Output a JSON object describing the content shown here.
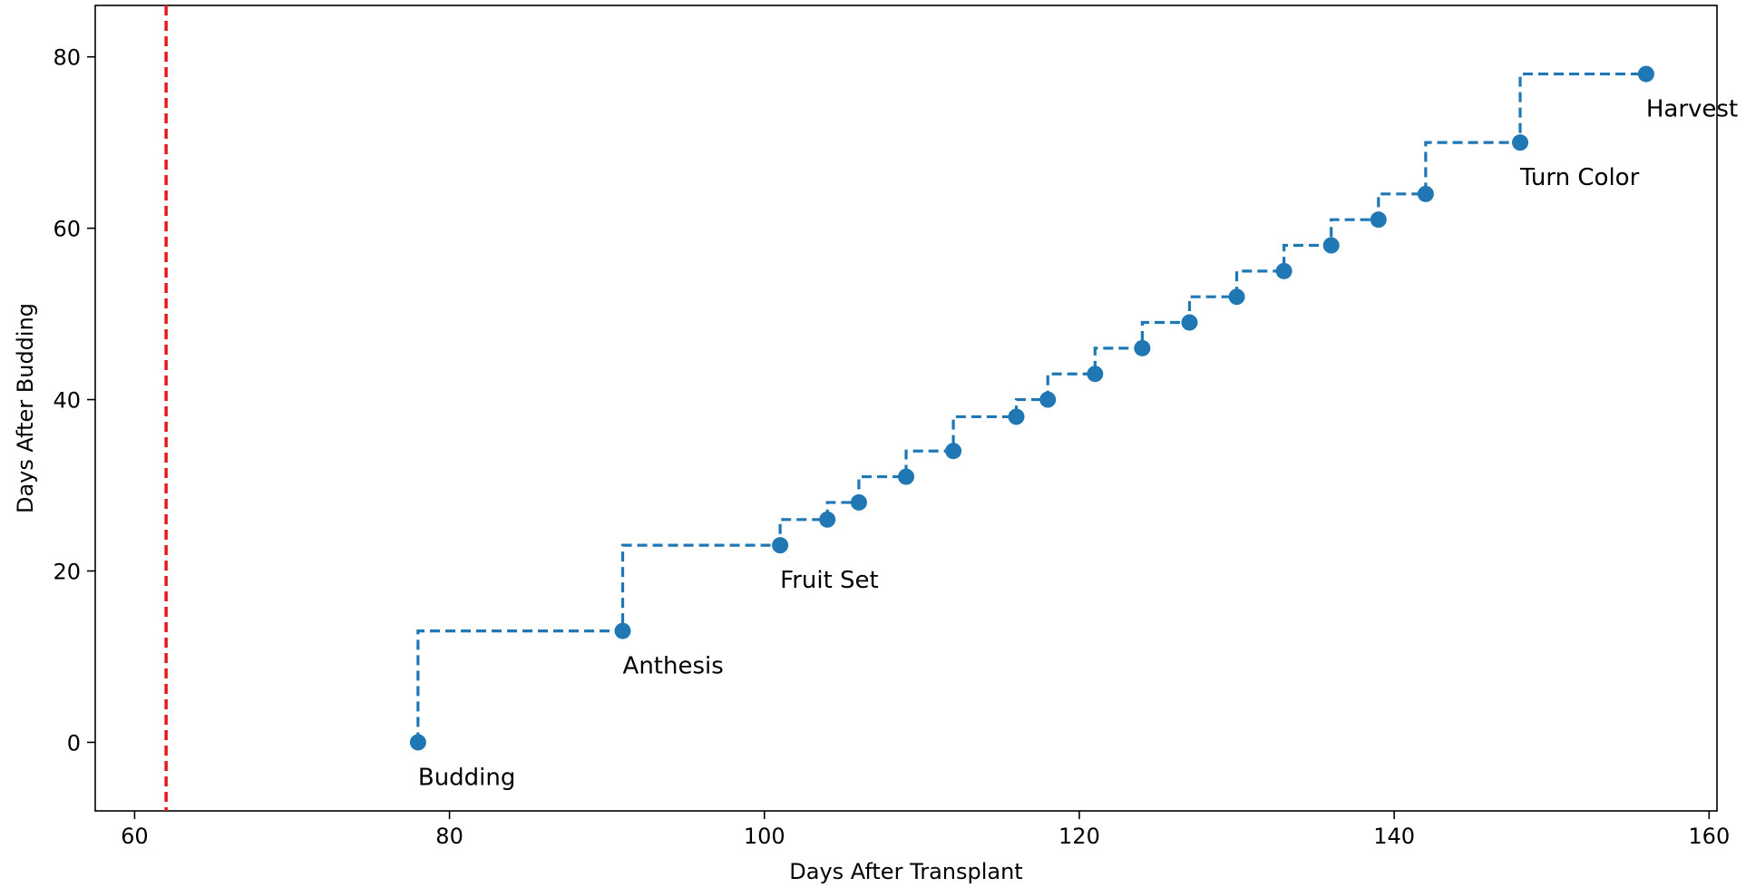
{
  "chart_data": {
    "type": "line",
    "xlabel": "Days After Transplant",
    "ylabel": "Days After Budding",
    "xlim": [
      57.5,
      160.5
    ],
    "ylim": [
      -8,
      86
    ],
    "xticks": [
      60,
      80,
      100,
      120,
      140,
      160
    ],
    "yticks": [
      0,
      20,
      40,
      60,
      80
    ],
    "grid": false,
    "line_style": "dashed step (steps-pre)",
    "series_color": "#1f77b4",
    "reference_line": {
      "x": 62,
      "color": "#e41a1c",
      "style": "dashed vertical"
    },
    "points": [
      {
        "x": 78,
        "y": 0
      },
      {
        "x": 91,
        "y": 13
      },
      {
        "x": 101,
        "y": 23
      },
      {
        "x": 104,
        "y": 26
      },
      {
        "x": 106,
        "y": 28
      },
      {
        "x": 109,
        "y": 31
      },
      {
        "x": 112,
        "y": 34
      },
      {
        "x": 116,
        "y": 38
      },
      {
        "x": 118,
        "y": 40
      },
      {
        "x": 121,
        "y": 43
      },
      {
        "x": 124,
        "y": 46
      },
      {
        "x": 127,
        "y": 49
      },
      {
        "x": 130,
        "y": 52
      },
      {
        "x": 133,
        "y": 55
      },
      {
        "x": 136,
        "y": 58
      },
      {
        "x": 139,
        "y": 61
      },
      {
        "x": 142,
        "y": 64
      },
      {
        "x": 148,
        "y": 70
      },
      {
        "x": 156,
        "y": 78
      }
    ],
    "annotations": [
      {
        "text": "Budding",
        "x": 78,
        "y": 0
      },
      {
        "text": "Anthesis",
        "x": 91,
        "y": 13
      },
      {
        "text": "Fruit Set",
        "x": 101,
        "y": 23
      },
      {
        "text": "Turn Color",
        "x": 148,
        "y": 70
      },
      {
        "text": "Harvest",
        "x": 156,
        "y": 78
      }
    ]
  }
}
